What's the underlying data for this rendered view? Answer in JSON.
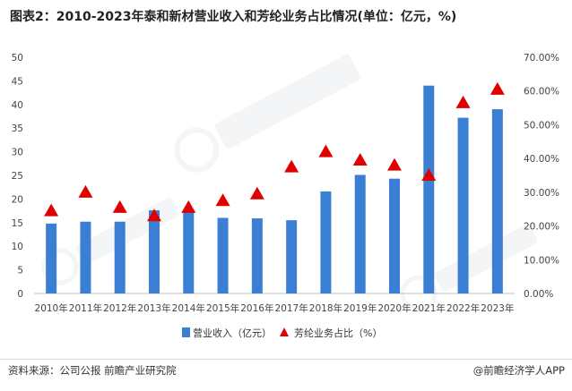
{
  "title": "图表2：2010-2023年泰和新材营业收入和芳纶业务占比情况(单位：亿元，%)",
  "footer": {
    "source": "资料来源：公司公报 前瞻产业研究院",
    "brand": "@前瞻经济学人APP"
  },
  "colors": {
    "bar": "#3b7fd4",
    "marker": "#e00000",
    "axis": "#bfbfbf"
  },
  "chart_data": {
    "type": "bar",
    "categories": [
      "2010年",
      "2011年",
      "2012年",
      "2013年",
      "2014年",
      "2015年",
      "2016年",
      "2017年",
      "2018年",
      "2019年",
      "2020年",
      "2021年",
      "2022年",
      "2023年"
    ],
    "series": [
      {
        "name": "营业收入（亿元）",
        "type": "bar",
        "axis": "left",
        "values": [
          14.8,
          15.2,
          15.2,
          17.6,
          17.6,
          16.0,
          15.9,
          15.5,
          21.6,
          25.1,
          24.3,
          44.0,
          37.2,
          39.0
        ]
      },
      {
        "name": "芳纶业务占比（%）",
        "type": "scatter",
        "marker": "triangle",
        "axis": "right",
        "values": [
          24.5,
          30.0,
          25.5,
          23.0,
          25.5,
          27.5,
          29.5,
          37.5,
          42.0,
          39.5,
          38.0,
          35.0,
          56.5,
          60.5
        ]
      }
    ],
    "y_left": {
      "min": 0,
      "max": 50,
      "ticks": [
        "0",
        "5",
        "10",
        "15",
        "20",
        "25",
        "30",
        "35",
        "40",
        "45",
        "50"
      ]
    },
    "y_right": {
      "min": 0,
      "max": 70,
      "ticks": [
        "0.00%",
        "10.00%",
        "20.00%",
        "30.00%",
        "40.00%",
        "50.00%",
        "60.00%",
        "70.00%"
      ]
    },
    "legend": [
      "营业收入（亿元）",
      "芳纶业务占比（%）"
    ],
    "legend_position": "bottom"
  }
}
